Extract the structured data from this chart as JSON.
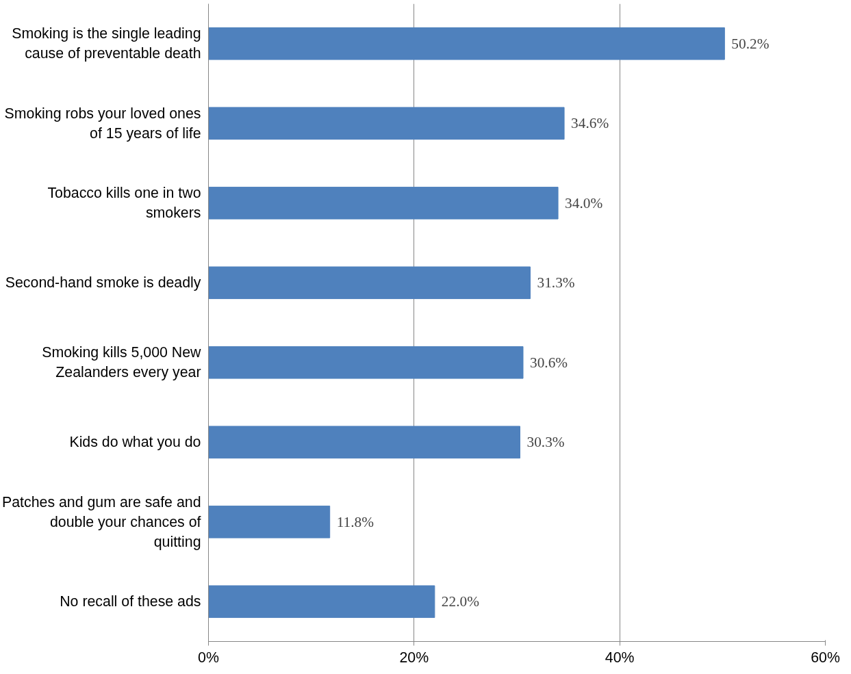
{
  "chart_data": {
    "type": "bar",
    "orientation": "horizontal",
    "categories": [
      "Smoking is the single leading cause of preventable death",
      "Smoking robs your loved ones of 15 years of life",
      "Tobacco kills one in two smokers",
      "Second-hand smoke is deadly",
      "Smoking kills 5,000 New Zealanders every year",
      "Kids do what you do",
      "Patches and gum are safe and double your chances of quitting",
      "No recall of these ads"
    ],
    "values": [
      50.2,
      34.6,
      34.0,
      31.3,
      30.6,
      30.3,
      11.8,
      22.0
    ],
    "value_labels": [
      "50.2%",
      "34.6%",
      "34.0%",
      "31.3%",
      "30.6%",
      "30.3%",
      "11.8%",
      "22.0%"
    ],
    "color": "#4f81bd",
    "xlim": [
      0,
      60
    ],
    "xticks": [
      {
        "value": 0,
        "label": "0%"
      },
      {
        "value": 20,
        "label": "20%"
      },
      {
        "value": 40,
        "label": "40%"
      },
      {
        "value": 60,
        "label": "60%"
      }
    ],
    "grid": "x"
  }
}
